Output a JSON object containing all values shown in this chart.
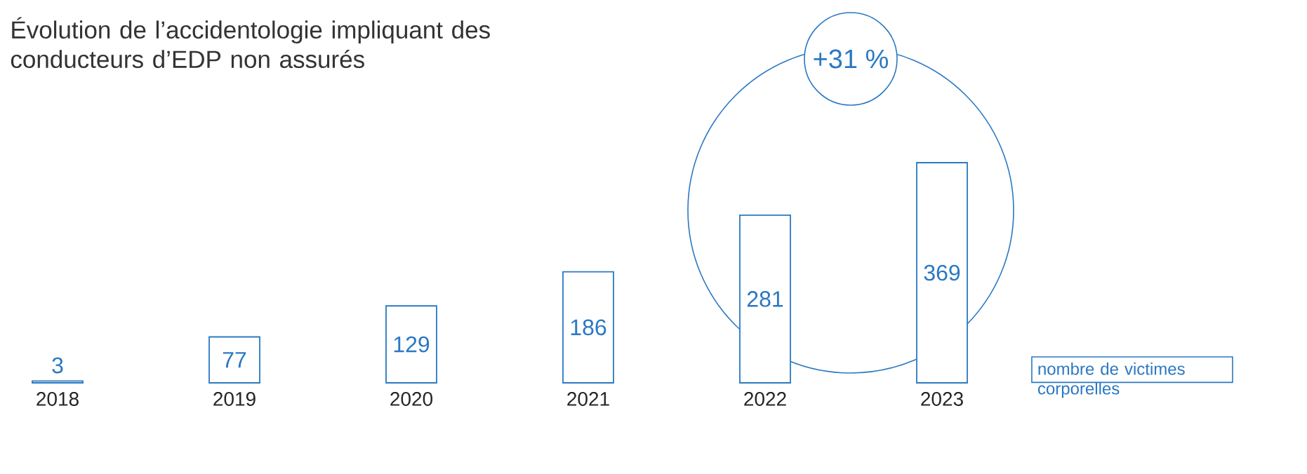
{
  "chart_data": {
    "type": "bar",
    "title": "Évolution de l’accidentologie impliquant des conducteurs d’EDP non assurés",
    "categories": [
      "2018",
      "2019",
      "2020",
      "2021",
      "2022",
      "2023"
    ],
    "series": [
      {
        "name": "nombre de victimes corporelles",
        "color": "#2b78c2",
        "values": [
          3,
          77,
          129,
          186,
          281,
          369
        ]
      }
    ],
    "data_labels": true,
    "legend": "right",
    "annotations": [
      "+31 %"
    ]
  }
}
